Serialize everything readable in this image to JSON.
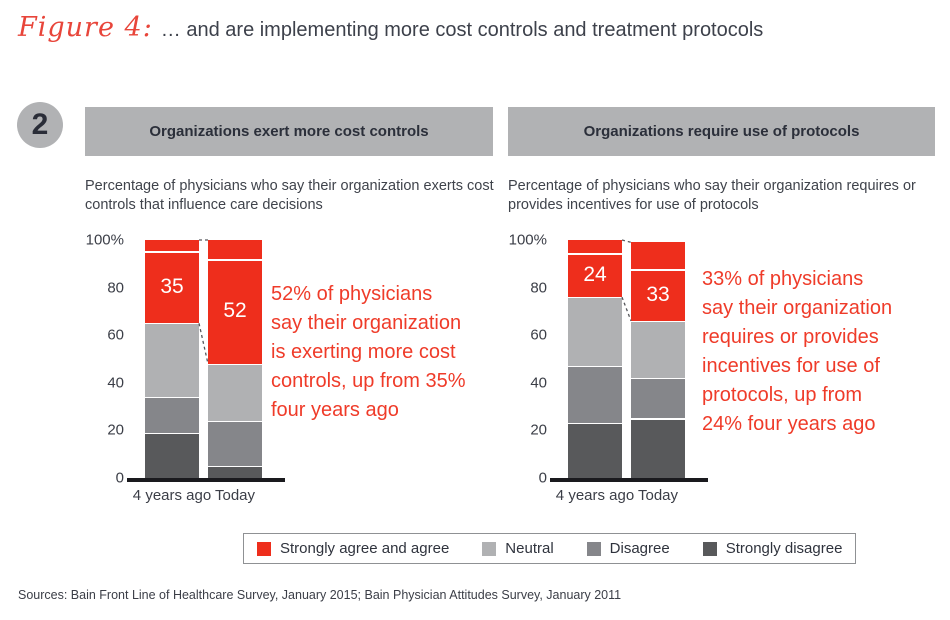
{
  "figure": {
    "label": "Figure 4:",
    "title": "… and are implementing more cost controls and treatment protocols"
  },
  "step_number": "2",
  "colors": {
    "red": "#ee2e1c",
    "neutral": "#b0b1b3",
    "disagree": "#85868a",
    "strongly_disagree": "#58595b",
    "header_bg": "#b1b2b4",
    "annotation_red": "#ef3b29",
    "dark_text": "#3b3e47"
  },
  "panels": [
    {
      "header": "Organizations exert more cost controls",
      "subtitle": "Percentage of physicians who say their organization exerts cost controls that influence care decisions",
      "annotation_lines": [
        "52% of physicians",
        "say their organization",
        "is exerting more cost",
        "controls, up from 35%",
        "four years ago"
      ]
    },
    {
      "header": "Organizations require use of protocols",
      "subtitle": "Percentage of physicians who say their organization requires or provides incentives for use of protocols",
      "annotation_lines": [
        "33% of physicians",
        "say their organization",
        "requires or provides",
        "incentives for use of",
        "protocols, up from",
        "24% four years ago"
      ]
    }
  ],
  "chart_data": [
    {
      "type": "bar",
      "stacked": true,
      "title": "Organizations exert more cost controls",
      "subtitle": "Percentage of physicians who say their organization exerts cost controls that influence care decisions",
      "categories": [
        "4 years ago",
        "Today"
      ],
      "series": [
        {
          "name": "Strongly disagree",
          "color_key": "strongly_disagree",
          "values": [
            19,
            5
          ]
        },
        {
          "name": "Disagree",
          "color_key": "disagree",
          "values": [
            15,
            19
          ]
        },
        {
          "name": "Neutral",
          "color_key": "neutral",
          "values": [
            31,
            24
          ]
        },
        {
          "name": "Strongly agree and agree",
          "color_key": "red",
          "values": [
            35,
            52
          ]
        }
      ],
      "totals": [
        100,
        100
      ],
      "bar_labels": [
        "35",
        "52"
      ],
      "split_lines": [
        95.5,
        92
      ],
      "yticks": [
        "100%",
        "80",
        "60",
        "40",
        "20",
        "0"
      ],
      "ylim": [
        0,
        100
      ],
      "grid": false,
      "legend_position": "bottom-shared",
      "annotation": "52% of physicians say their organization is exerting more cost controls, up from 35% four years ago"
    },
    {
      "type": "bar",
      "stacked": true,
      "title": "Organizations require use of protocols",
      "subtitle": "Percentage of physicians who say their organization requires or provides incentives for use of protocols",
      "categories": [
        "4 years ago",
        "Today"
      ],
      "series": [
        {
          "name": "Strongly disagree",
          "color_key": "strongly_disagree",
          "values": [
            23,
            25
          ]
        },
        {
          "name": "Disagree",
          "color_key": "disagree",
          "values": [
            24,
            17
          ]
        },
        {
          "name": "Neutral",
          "color_key": "neutral",
          "values": [
            29,
            24
          ]
        },
        {
          "name": "Strongly agree and agree",
          "color_key": "red",
          "values": [
            24,
            33
          ]
        }
      ],
      "totals": [
        100,
        99
      ],
      "bar_labels": [
        "24",
        "33"
      ],
      "split_lines": [
        94.5,
        88
      ],
      "yticks": [
        "100%",
        "80",
        "60",
        "40",
        "20",
        "0"
      ],
      "ylim": [
        0,
        100
      ],
      "grid": false,
      "legend_position": "bottom-shared",
      "annotation": "33% of physicians say their organization requires or provides incentives for use of protocols, up from 24% four years ago"
    }
  ],
  "legend": {
    "items": [
      {
        "label": "Strongly agree and agree",
        "color_key": "red"
      },
      {
        "label": "Neutral",
        "color_key": "neutral"
      },
      {
        "label": "Disagree",
        "color_key": "disagree"
      },
      {
        "label": "Strongly disagree",
        "color_key": "strongly_disagree"
      }
    ]
  },
  "sources": "Sources: Bain Front Line of Healthcare Survey, January 2015; Bain Physician Attitudes Survey, January 2011"
}
